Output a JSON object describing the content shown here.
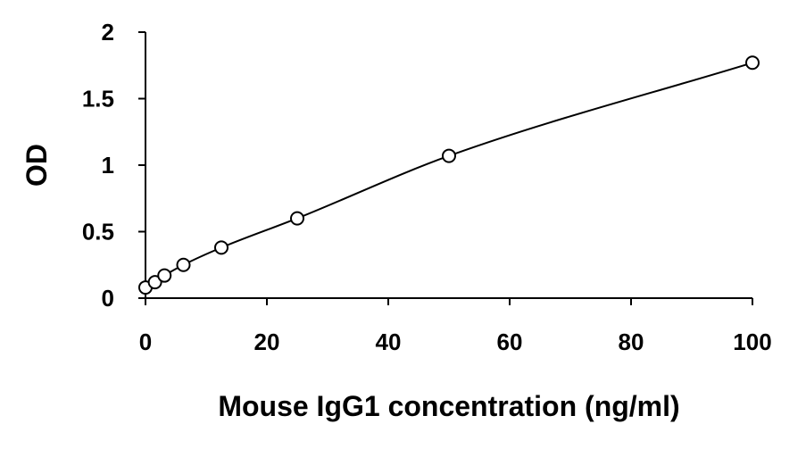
{
  "chart_data": {
    "type": "scatter",
    "title": "",
    "xlabel": "Mouse IgG1 concentration (ng/ml)",
    "ylabel": "OD",
    "xlim": [
      0,
      100
    ],
    "ylim": [
      0,
      2
    ],
    "x_ticks": [
      0,
      20,
      40,
      60,
      80,
      100
    ],
    "x_tick_labels": [
      "0",
      "20",
      "40",
      "60",
      "80",
      "100"
    ],
    "y_ticks": [
      0,
      0.5,
      1,
      1.5,
      2
    ],
    "y_tick_labels": [
      "0",
      "0.5",
      "1",
      "1.5",
      "2"
    ],
    "grid": false,
    "legend": "none",
    "series": [
      {
        "marker": "open-circle",
        "trendline": "fitted-curve",
        "x": [
          0,
          1.5625,
          3.125,
          6.25,
          12.5,
          25,
          50,
          100
        ],
        "y": [
          0.08,
          0.12,
          0.17,
          0.25,
          0.38,
          0.6,
          1.07,
          1.77
        ]
      }
    ],
    "colors": {
      "marker": "#000000",
      "curve": "#000000",
      "axis": "#000000"
    }
  }
}
